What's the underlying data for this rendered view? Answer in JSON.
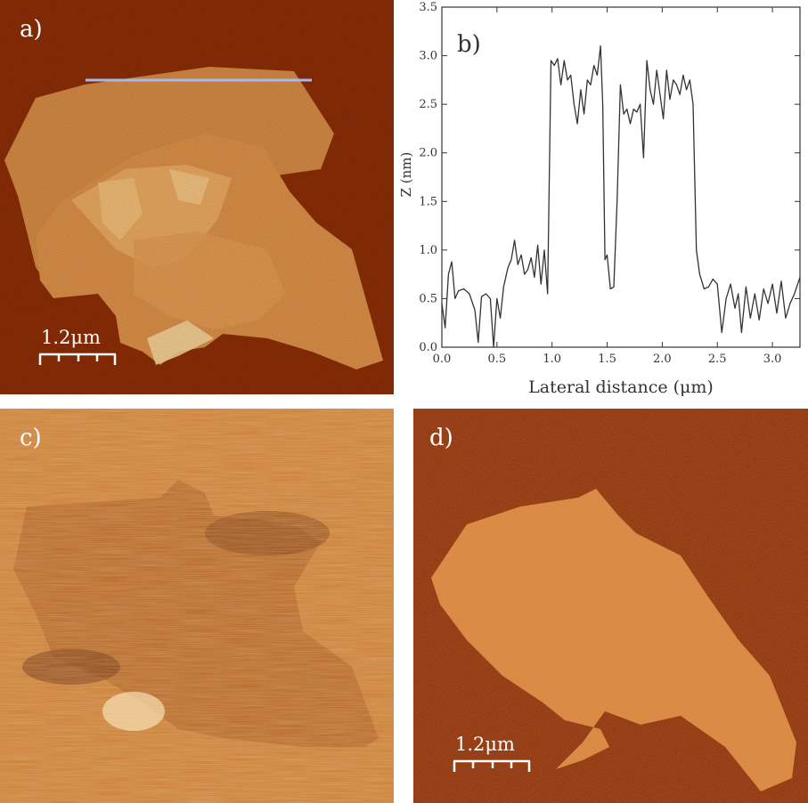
{
  "figure": {
    "panel_a": {
      "label": "a)",
      "scale_bar": "1.2μm"
    },
    "panel_b": {
      "label": "b)"
    },
    "panel_c": {
      "label": "c)"
    },
    "panel_d": {
      "label": "d)",
      "scale_bar": "1.2μm"
    }
  },
  "colors": {
    "afm_background": "#8c2d06",
    "flake": "#e39a4c",
    "profile_line": "#a8b8e8",
    "phase_background": "#c97c33",
    "curve": "#333333"
  },
  "chart_data": {
    "type": "line",
    "xlabel": "Lateral distance (μm)",
    "ylabel": "Z (nm)",
    "xlim": [
      0,
      3.25
    ],
    "ylim": [
      0,
      3.5
    ],
    "xticks": [
      "0.0",
      "0.5",
      "1.0",
      "1.5",
      "2.0",
      "2.5",
      "3.0"
    ],
    "yticks": [
      "0.0",
      "0.5",
      "1.0",
      "1.5",
      "2.0",
      "2.5",
      "3.0",
      "3.5"
    ],
    "grid": false,
    "series": [
      {
        "x": [
          0.0,
          0.03,
          0.06,
          0.09,
          0.12,
          0.15,
          0.2,
          0.25,
          0.3,
          0.33,
          0.36,
          0.4,
          0.44,
          0.47,
          0.5,
          0.53,
          0.56,
          0.6,
          0.63,
          0.66,
          0.69,
          0.72,
          0.75,
          0.78,
          0.81,
          0.84,
          0.87,
          0.9,
          0.93,
          0.96,
          0.99,
          1.02,
          1.05,
          1.08,
          1.11,
          1.14,
          1.17,
          1.2,
          1.23,
          1.26,
          1.29,
          1.32,
          1.35,
          1.38,
          1.41,
          1.44,
          1.46,
          1.48,
          1.5,
          1.53,
          1.56,
          1.59,
          1.62,
          1.65,
          1.68,
          1.71,
          1.74,
          1.77,
          1.8,
          1.83,
          1.86,
          1.89,
          1.92,
          1.95,
          1.98,
          2.01,
          2.04,
          2.07,
          2.1,
          2.13,
          2.16,
          2.19,
          2.22,
          2.25,
          2.28,
          2.31,
          2.34,
          2.38,
          2.42,
          2.46,
          2.5,
          2.54,
          2.58,
          2.62,
          2.66,
          2.69,
          2.72,
          2.76,
          2.8,
          2.84,
          2.88,
          2.92,
          2.96,
          3.0,
          3.04,
          3.08,
          3.12,
          3.16,
          3.2,
          3.25
        ],
        "y": [
          0.45,
          0.2,
          0.75,
          0.88,
          0.5,
          0.58,
          0.6,
          0.55,
          0.38,
          0.05,
          0.52,
          0.55,
          0.5,
          0.0,
          0.5,
          0.3,
          0.62,
          0.82,
          0.9,
          1.1,
          0.85,
          0.95,
          0.75,
          0.8,
          0.92,
          0.72,
          1.05,
          0.65,
          1.0,
          0.55,
          2.95,
          2.9,
          2.97,
          2.7,
          2.95,
          2.75,
          2.8,
          2.5,
          2.3,
          2.65,
          2.4,
          2.75,
          2.7,
          2.9,
          2.8,
          3.1,
          2.5,
          0.9,
          0.95,
          0.6,
          0.62,
          1.5,
          2.7,
          2.4,
          2.45,
          2.3,
          2.45,
          2.42,
          2.5,
          1.95,
          2.95,
          2.65,
          2.5,
          2.85,
          2.6,
          2.35,
          2.85,
          2.55,
          2.75,
          2.7,
          2.6,
          2.8,
          2.65,
          2.75,
          2.5,
          1.0,
          0.75,
          0.6,
          0.62,
          0.7,
          0.65,
          0.15,
          0.5,
          0.65,
          0.4,
          0.55,
          0.15,
          0.62,
          0.3,
          0.55,
          0.28,
          0.6,
          0.45,
          0.65,
          0.35,
          0.68,
          0.3,
          0.45,
          0.55,
          0.72
        ]
      }
    ]
  }
}
